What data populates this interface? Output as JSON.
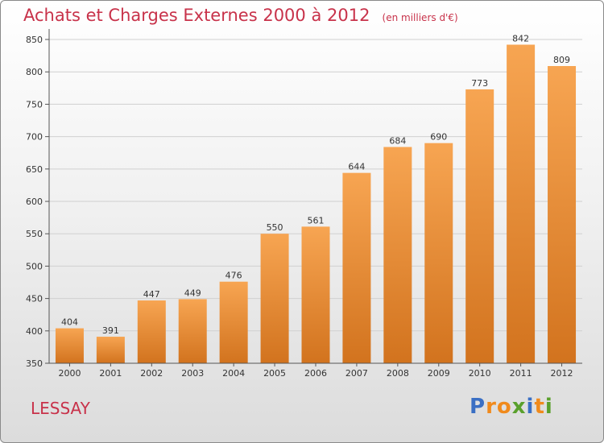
{
  "header": {
    "title": "Achats et Charges Externes 2000 à 2012",
    "subtitle": "(en milliers d'€)"
  },
  "footer": {
    "commune": "LESSAY",
    "brand_letters": [
      "P",
      "r",
      "o",
      "x",
      "i",
      "t",
      "i"
    ],
    "brand_colors": [
      "#3a6fc4",
      "#f08a1c",
      "#f08a1c",
      "#5aa02c",
      "#3a6fc4",
      "#f08a1c",
      "#5aa02c"
    ]
  },
  "colors": {
    "bar_top": "#f7a552",
    "bar_bottom": "#d2731e",
    "grid": "#d0d0d0",
    "title": "#c8324a"
  },
  "chart_data": {
    "type": "bar",
    "title": "Achats et Charges Externes 2000 à 2012",
    "subtitle": "(en milliers d'€)",
    "categories": [
      "2000",
      "2001",
      "2002",
      "2003",
      "2004",
      "2005",
      "2006",
      "2007",
      "2008",
      "2009",
      "2010",
      "2011",
      "2012"
    ],
    "values": [
      404,
      391,
      447,
      449,
      476,
      550,
      561,
      644,
      684,
      690,
      773,
      842,
      809
    ],
    "ylim": [
      350,
      860
    ],
    "yticks": [
      350,
      400,
      450,
      500,
      550,
      600,
      650,
      700,
      750,
      800,
      850
    ],
    "grid": true,
    "xlabel": "",
    "ylabel": ""
  }
}
